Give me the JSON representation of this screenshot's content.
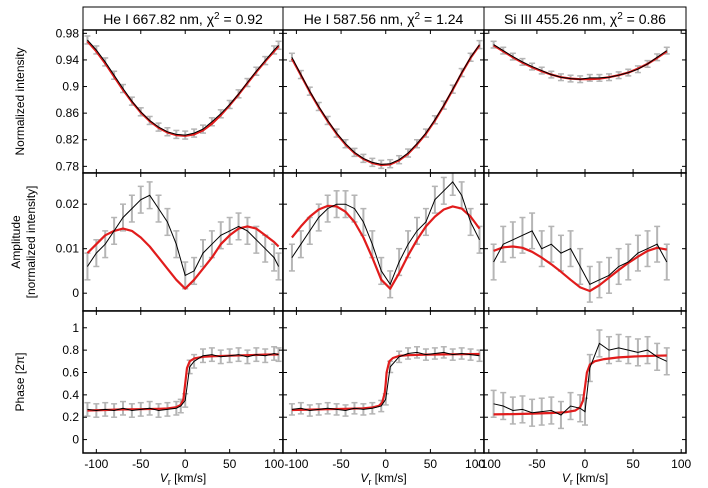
{
  "chart_data": {
    "type": "line",
    "layout": "3x3 grid of line plots with error bars; columns = spectral lines, rows = quantities",
    "columns": [
      {
        "title_prefix": "He I 667.82 nm, χ",
        "title_sup": "2",
        "title_suffix": " = 0.92",
        "xlim": [
          -115,
          110
        ]
      },
      {
        "title_prefix": "He I 587.56 nm, χ",
        "title_sup": "2",
        "title_suffix": " = 1.24",
        "xlim": [
          -115,
          110
        ]
      },
      {
        "title_prefix": "Si III 455.26 nm, χ",
        "title_sup": "2",
        "title_suffix": " = 0.86",
        "xlim": [
          -105,
          105
        ]
      }
    ],
    "xticks": {
      "0": [
        -100,
        -50,
        0,
        50,
        100
      ],
      "1": [
        -100,
        -50,
        0,
        50,
        100
      ],
      "2": [
        -100,
        -50,
        0,
        50,
        100
      ]
    },
    "xlabel_main": "V",
    "xlabel_sub": "r",
    "xlabel_unit": " [km/s]",
    "rows": [
      {
        "ylabel_lines": [
          "Normalized intensity"
        ],
        "ylim": [
          0.77,
          0.985
        ],
        "yticks": [
          0.78,
          0.82,
          0.86,
          0.9,
          0.94,
          0.98
        ],
        "ytick_labels": [
          "0.78",
          "0.82",
          "0.86",
          "0.9",
          "0.94",
          "0.98"
        ]
      },
      {
        "ylabel_lines": [
          "Amplitude",
          "[normalized intensity]"
        ],
        "ylim": [
          -0.004,
          0.027
        ],
        "yticks": [
          0,
          0.01,
          0.02
        ],
        "ytick_labels": [
          "0",
          "0.01",
          "0.02"
        ]
      },
      {
        "ylabel_lines": [
          "Phase [2π]"
        ],
        "ylim": [
          -0.12,
          1.15
        ],
        "yticks": [
          0,
          0.2,
          0.4,
          0.6,
          0.8,
          1
        ],
        "ytick_labels": [
          "0",
          "0.2",
          "0.4",
          "0.6",
          "0.8",
          "1"
        ]
      }
    ],
    "series_style": {
      "observed": {
        "color": "#000000",
        "error_color": "#b5b5b5"
      },
      "model": {
        "color": "#e11c1c"
      }
    },
    "panels": [
      {
        "row": 0,
        "col": 0,
        "observed": {
          "x": [
            -110,
            -100,
            -90,
            -80,
            -70,
            -60,
            -50,
            -40,
            -30,
            -20,
            -10,
            0,
            10,
            20,
            30,
            40,
            50,
            60,
            70,
            80,
            90,
            100,
            105
          ],
          "y": [
            0.97,
            0.955,
            0.937,
            0.917,
            0.897,
            0.878,
            0.862,
            0.849,
            0.839,
            0.832,
            0.828,
            0.827,
            0.83,
            0.836,
            0.847,
            0.859,
            0.873,
            0.889,
            0.906,
            0.923,
            0.939,
            0.955,
            0.962
          ],
          "err": 0.006
        },
        "model": {
          "x": [
            -110,
            -100,
            -90,
            -80,
            -70,
            -60,
            -50,
            -40,
            -30,
            -20,
            -10,
            0,
            10,
            20,
            30,
            40,
            50,
            60,
            70,
            80,
            90,
            100,
            105
          ],
          "y": [
            0.968,
            0.953,
            0.935,
            0.915,
            0.895,
            0.877,
            0.861,
            0.848,
            0.838,
            0.831,
            0.827,
            0.826,
            0.828,
            0.834,
            0.844,
            0.857,
            0.872,
            0.888,
            0.905,
            0.922,
            0.938,
            0.953,
            0.961
          ]
        }
      },
      {
        "row": 0,
        "col": 1,
        "observed": {
          "x": [
            -105,
            -95,
            -85,
            -75,
            -65,
            -55,
            -45,
            -35,
            -25,
            -15,
            -5,
            5,
            15,
            25,
            35,
            45,
            55,
            65,
            75,
            85,
            95,
            105
          ],
          "y": [
            0.944,
            0.918,
            0.893,
            0.87,
            0.849,
            0.83,
            0.814,
            0.801,
            0.792,
            0.786,
            0.783,
            0.784,
            0.79,
            0.8,
            0.814,
            0.83,
            0.85,
            0.872,
            0.896,
            0.921,
            0.944,
            0.963
          ],
          "err": 0.006
        },
        "model": {
          "x": [
            -105,
            -95,
            -85,
            -75,
            -65,
            -55,
            -45,
            -35,
            -25,
            -15,
            -5,
            5,
            15,
            25,
            35,
            45,
            55,
            65,
            75,
            85,
            95,
            105
          ],
          "y": [
            0.942,
            0.917,
            0.892,
            0.869,
            0.848,
            0.829,
            0.813,
            0.8,
            0.791,
            0.785,
            0.782,
            0.783,
            0.789,
            0.799,
            0.813,
            0.829,
            0.849,
            0.871,
            0.895,
            0.92,
            0.943,
            0.962
          ]
        }
      },
      {
        "row": 0,
        "col": 2,
        "observed": {
          "x": [
            -95,
            -85,
            -75,
            -65,
            -55,
            -45,
            -35,
            -25,
            -15,
            -5,
            5,
            15,
            25,
            35,
            45,
            55,
            65,
            75,
            85
          ],
          "y": [
            0.963,
            0.954,
            0.945,
            0.937,
            0.93,
            0.924,
            0.918,
            0.914,
            0.912,
            0.911,
            0.913,
            0.913,
            0.914,
            0.917,
            0.921,
            0.926,
            0.934,
            0.944,
            0.954
          ],
          "err": 0.005
        },
        "model": {
          "x": [
            -95,
            -85,
            -75,
            -65,
            -55,
            -45,
            -35,
            -25,
            -15,
            -5,
            5,
            15,
            25,
            35,
            45,
            55,
            65,
            75,
            85
          ],
          "y": [
            0.962,
            0.953,
            0.944,
            0.936,
            0.929,
            0.923,
            0.918,
            0.914,
            0.912,
            0.911,
            0.911,
            0.912,
            0.914,
            0.917,
            0.921,
            0.927,
            0.934,
            0.943,
            0.953
          ]
        }
      },
      {
        "row": 1,
        "col": 0,
        "observed": {
          "x": [
            -110,
            -100,
            -90,
            -80,
            -70,
            -60,
            -50,
            -40,
            -30,
            -20,
            -10,
            0,
            10,
            20,
            30,
            40,
            50,
            60,
            70,
            80,
            90,
            100,
            105
          ],
          "y": [
            0.006,
            0.009,
            0.011,
            0.014,
            0.017,
            0.019,
            0.021,
            0.022,
            0.019,
            0.016,
            0.011,
            0.004,
            0.005,
            0.009,
            0.011,
            0.013,
            0.014,
            0.015,
            0.014,
            0.012,
            0.01,
            0.008,
            0.006
          ],
          "err": 0.003
        },
        "model": {
          "x": [
            -110,
            -100,
            -90,
            -80,
            -70,
            -60,
            -50,
            -40,
            -30,
            -20,
            -10,
            0,
            10,
            20,
            30,
            40,
            50,
            60,
            70,
            80,
            90,
            100,
            105
          ],
          "y": [
            0.009,
            0.011,
            0.013,
            0.014,
            0.0145,
            0.014,
            0.0125,
            0.0105,
            0.008,
            0.0055,
            0.003,
            0.001,
            0.003,
            0.0055,
            0.008,
            0.011,
            0.013,
            0.0145,
            0.015,
            0.0145,
            0.013,
            0.0115,
            0.0105
          ]
        }
      },
      {
        "row": 1,
        "col": 1,
        "observed": {
          "x": [
            -105,
            -95,
            -85,
            -75,
            -65,
            -55,
            -45,
            -35,
            -25,
            -15,
            -5,
            5,
            15,
            25,
            35,
            45,
            55,
            65,
            75,
            85,
            95,
            105
          ],
          "y": [
            0.008,
            0.011,
            0.014,
            0.017,
            0.019,
            0.02,
            0.02,
            0.019,
            0.016,
            0.011,
            0.005,
            0.002,
            0.007,
            0.011,
            0.014,
            0.016,
            0.021,
            0.023,
            0.025,
            0.022,
            0.016,
            0.012
          ],
          "err": 0.003
        },
        "model": {
          "x": [
            -105,
            -95,
            -85,
            -75,
            -65,
            -55,
            -45,
            -35,
            -25,
            -15,
            -5,
            5,
            15,
            25,
            35,
            45,
            55,
            65,
            75,
            85,
            95,
            105
          ],
          "y": [
            0.0125,
            0.015,
            0.0172,
            0.0188,
            0.0196,
            0.0195,
            0.0183,
            0.016,
            0.0125,
            0.008,
            0.003,
            0.001,
            0.0045,
            0.0085,
            0.012,
            0.015,
            0.0172,
            0.0188,
            0.0195,
            0.019,
            0.0172,
            0.0145
          ]
        }
      },
      {
        "row": 1,
        "col": 2,
        "observed": {
          "x": [
            -95,
            -85,
            -75,
            -65,
            -55,
            -45,
            -35,
            -25,
            -15,
            -5,
            5,
            15,
            25,
            35,
            45,
            55,
            65,
            75,
            85
          ],
          "y": [
            0.007,
            0.011,
            0.012,
            0.013,
            0.014,
            0.01,
            0.011,
            0.009,
            0.01,
            0.006,
            0.002,
            0.003,
            0.004,
            0.006,
            0.007,
            0.009,
            0.01,
            0.011,
            0.007
          ],
          "err": 0.004
        },
        "model": {
          "x": [
            -95,
            -85,
            -75,
            -65,
            -55,
            -45,
            -35,
            -25,
            -15,
            -5,
            5,
            15,
            25,
            35,
            45,
            55,
            65,
            75,
            85
          ],
          "y": [
            0.0095,
            0.0103,
            0.0105,
            0.0102,
            0.0093,
            0.008,
            0.0065,
            0.0048,
            0.003,
            0.0013,
            0.0005,
            0.0018,
            0.0035,
            0.0052,
            0.0068,
            0.0082,
            0.0095,
            0.0102,
            0.0098
          ]
        }
      },
      {
        "row": 2,
        "col": 0,
        "observed": {
          "x": [
            -110,
            -100,
            -90,
            -80,
            -70,
            -60,
            -50,
            -40,
            -30,
            -20,
            -10,
            -5,
            0,
            5,
            10,
            20,
            30,
            40,
            50,
            60,
            70,
            80,
            90,
            100,
            105
          ],
          "y": [
            0.27,
            0.26,
            0.27,
            0.26,
            0.28,
            0.26,
            0.27,
            0.28,
            0.26,
            0.27,
            0.28,
            0.3,
            0.35,
            0.65,
            0.7,
            0.75,
            0.76,
            0.74,
            0.75,
            0.76,
            0.74,
            0.76,
            0.75,
            0.77,
            0.76
          ],
          "err": 0.06
        },
        "model": {
          "x": [
            -110,
            -90,
            -70,
            -50,
            -30,
            -20,
            -10,
            -5,
            -2,
            0,
            2,
            5,
            10,
            20,
            30,
            50,
            70,
            90,
            105
          ],
          "y": [
            0.26,
            0.265,
            0.27,
            0.272,
            0.275,
            0.278,
            0.29,
            0.31,
            0.36,
            0.5,
            0.64,
            0.7,
            0.725,
            0.74,
            0.745,
            0.75,
            0.755,
            0.76,
            0.762
          ]
        }
      },
      {
        "row": 2,
        "col": 1,
        "observed": {
          "x": [
            -105,
            -95,
            -85,
            -75,
            -65,
            -55,
            -45,
            -35,
            -25,
            -15,
            -5,
            0,
            5,
            15,
            25,
            35,
            45,
            55,
            65,
            75,
            85,
            95,
            105
          ],
          "y": [
            0.27,
            0.28,
            0.26,
            0.27,
            0.28,
            0.27,
            0.26,
            0.28,
            0.27,
            0.28,
            0.3,
            0.36,
            0.65,
            0.74,
            0.77,
            0.78,
            0.76,
            0.77,
            0.78,
            0.76,
            0.77,
            0.76,
            0.75
          ],
          "err": 0.05
        },
        "model": {
          "x": [
            -105,
            -85,
            -65,
            -45,
            -25,
            -15,
            -8,
            -4,
            -1,
            0,
            1,
            4,
            8,
            15,
            25,
            45,
            65,
            85,
            105
          ],
          "y": [
            0.265,
            0.268,
            0.272,
            0.275,
            0.28,
            0.287,
            0.3,
            0.33,
            0.42,
            0.5,
            0.6,
            0.7,
            0.73,
            0.748,
            0.755,
            0.76,
            0.762,
            0.764,
            0.765
          ]
        }
      },
      {
        "row": 2,
        "col": 2,
        "observed": {
          "x": [
            -95,
            -85,
            -75,
            -65,
            -55,
            -45,
            -35,
            -25,
            -15,
            -5,
            0,
            5,
            15,
            25,
            35,
            45,
            55,
            65,
            75,
            85
          ],
          "y": [
            0.32,
            0.3,
            0.26,
            0.27,
            0.24,
            0.25,
            0.26,
            0.22,
            0.3,
            0.28,
            0.25,
            0.64,
            0.86,
            0.8,
            0.82,
            0.8,
            0.78,
            0.8,
            0.74,
            0.7
          ],
          "err": 0.12
        },
        "model": {
          "x": [
            -95,
            -75,
            -55,
            -35,
            -20,
            -10,
            -5,
            -2,
            0,
            2,
            5,
            10,
            20,
            35,
            55,
            75,
            85
          ],
          "y": [
            0.225,
            0.228,
            0.232,
            0.238,
            0.245,
            0.26,
            0.29,
            0.35,
            0.47,
            0.6,
            0.67,
            0.7,
            0.72,
            0.735,
            0.745,
            0.75,
            0.752
          ]
        }
      }
    ]
  }
}
